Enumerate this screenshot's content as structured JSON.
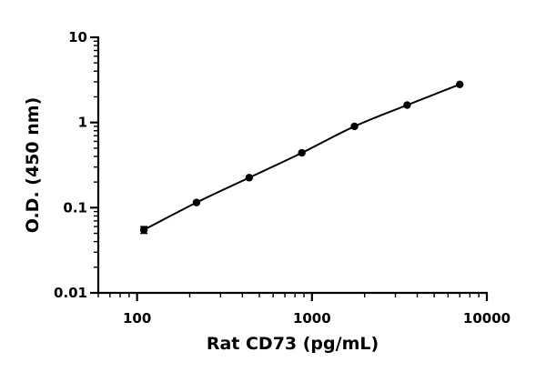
{
  "chart_data": {
    "type": "scatter",
    "title": "",
    "xlabel": "Rat CD73 (pg/mL)",
    "ylabel": "O.D. (450 nm)",
    "xscale": "log",
    "yscale": "log",
    "xlim": [
      60,
      10000
    ],
    "ylim": [
      0.01,
      10
    ],
    "x_ticks": [
      100,
      1000,
      10000
    ],
    "x_tick_labels": [
      "100",
      "1000",
      "10000"
    ],
    "y_ticks": [
      0.01,
      0.1,
      1,
      10
    ],
    "y_tick_labels": [
      "0.01",
      "0.1",
      "1",
      "10"
    ],
    "grid": false,
    "legend": "none",
    "series": [
      {
        "x": [
          109.4,
          218.8,
          437.5,
          875,
          1750,
          3500,
          7000
        ],
        "y": [
          0.055,
          0.115,
          0.225,
          0.44,
          0.9,
          1.6,
          2.8
        ],
        "y_err": [
          0.005,
          0.003,
          0.004,
          0.006,
          0.01,
          0.02,
          0.03
        ],
        "fit_line": true
      }
    ],
    "colors": {
      "marks": "#000000"
    }
  }
}
